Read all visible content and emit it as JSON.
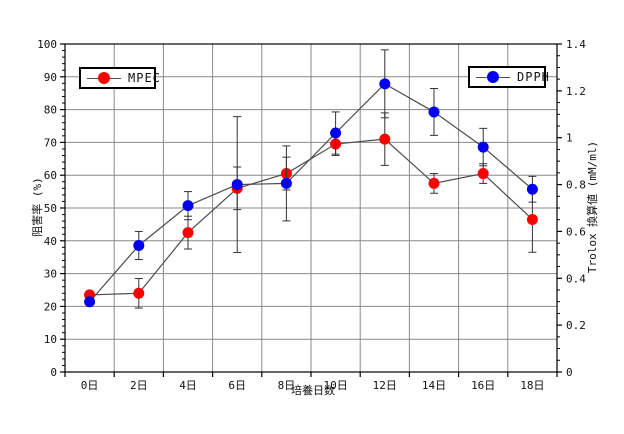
{
  "window": {
    "background": "#ffffff"
  },
  "colors": {
    "grid": "#888888",
    "spine": "#000000",
    "series_line": "#4d4d4d",
    "error_bar": "#333333",
    "mpec": "#ff0000",
    "dpph": "#0000ee"
  },
  "chart_data": {
    "type": "line",
    "title": "",
    "xlabel": "培養日数",
    "x_categories": [
      "0日",
      "2日",
      "4日",
      "6日",
      "8日",
      "10日",
      "12日",
      "14日",
      "16日",
      "18日"
    ],
    "left_axis": {
      "label": "阻害率 (%)",
      "min": 0,
      "max": 100,
      "major_step": 10,
      "minor_step": 2,
      "tick_labels": [
        "0",
        "10",
        "20",
        "30",
        "40",
        "50",
        "60",
        "70",
        "80",
        "90",
        "100"
      ]
    },
    "right_axis": {
      "label": "Trolox 換算値 (mM/ml)",
      "min": 0,
      "max": 1.4,
      "major_step": 0.2,
      "minor_step": 0.05,
      "tick_labels": [
        "0",
        "0.2",
        "0.4",
        "0.6",
        "0.8",
        "1",
        "1.2",
        "1.4"
      ]
    },
    "grid": true,
    "legend_position": "top-inside",
    "legend": [
      {
        "label": "MPEC",
        "color": "#ff0000"
      },
      {
        "label": "DPPH",
        "color": "#0000ee"
      }
    ],
    "series": [
      {
        "name": "MPEC",
        "axis": "left",
        "marker": "circle",
        "color": "#ff0000",
        "values": [
          23.5,
          24,
          42.5,
          56,
          60.5,
          69.5,
          71,
          57.5,
          60.5,
          46.5
        ],
        "errors": [
          0,
          4.5,
          5,
          6.5,
          5,
          3.5,
          8,
          3,
          3,
          10
        ]
      },
      {
        "name": "DPPH",
        "axis": "right",
        "marker": "circle",
        "color": "#0000ee",
        "values": [
          0.3,
          0.54,
          0.71,
          0.8,
          0.805,
          1.02,
          1.23,
          1.11,
          0.96,
          0.78
        ],
        "errors": [
          0,
          0.06,
          0.06,
          0.29,
          0.16,
          0.09,
          0.145,
          0.1,
          0.08,
          0.055
        ]
      }
    ]
  }
}
